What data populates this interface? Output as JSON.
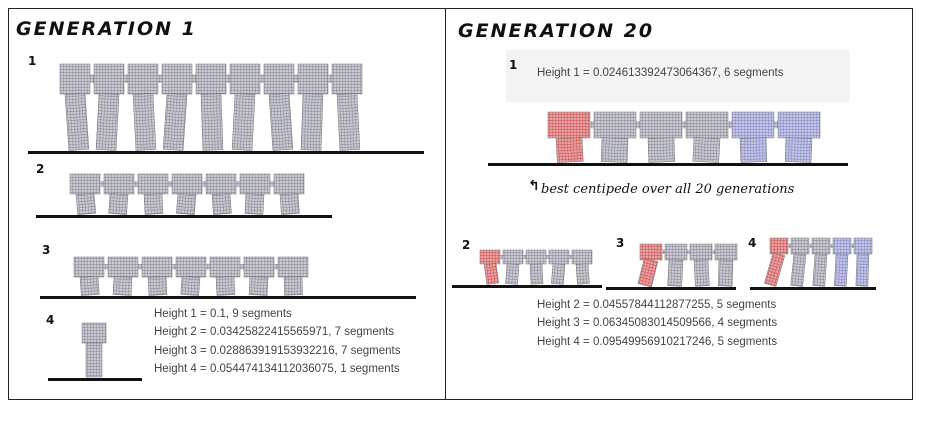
{
  "colors": {
    "segment_gray": "#9a9aa8",
    "segment_red": "#cc3b3b",
    "segment_blue": "#8d8fc6",
    "ground": "#111111"
  },
  "left_panel": {
    "title": "GENERATION 1",
    "labels": [
      "1",
      "2",
      "3",
      "4"
    ],
    "heights": [
      "Height 1 = 0.1, 9 segments",
      "Height 2 = 0.03425822415565971, 7 segments",
      "Height 3 = 0.028863919153932216, 7 segments",
      "Height 4 = 0.054474134112036075, 1 segments"
    ]
  },
  "right_panel": {
    "title": "GENERATION 20",
    "labels": [
      "1",
      "2",
      "3",
      "4"
    ],
    "height_1": "Height 1 = 0.024613392473064367, 6 segments",
    "best_note": "best centipede over all 20 generations",
    "heights": [
      "Height 2 = 0.04557844112877255, 5 segments",
      "Height 3 = 0.06345083014509566, 4 segments",
      "Height 4 = 0.09549956910217246, 5 segments"
    ]
  }
}
